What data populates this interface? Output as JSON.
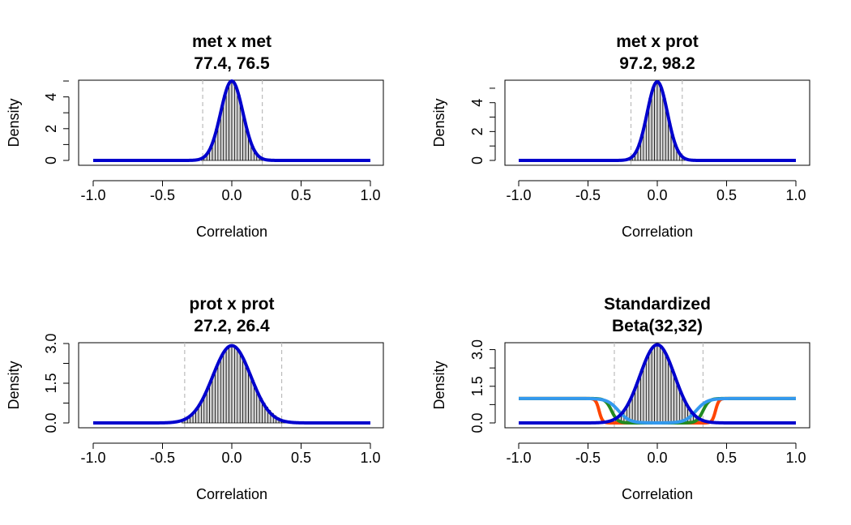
{
  "chart_data": [
    {
      "type": "histogram",
      "title_line1": "met x met",
      "title_line2": "77.4, 76.5",
      "xlabel": "Correlation",
      "ylabel": "Density",
      "xlim": [
        -1.0,
        1.0
      ],
      "ylim": [
        0,
        5.0
      ],
      "x_ticks": [
        "-1.0",
        "-0.5",
        "0.0",
        "0.5",
        "1.0"
      ],
      "y_ticks": [
        0,
        2,
        4
      ],
      "density_peak": 5.0,
      "density_sd": 0.08,
      "threshold_lines": [
        -0.21,
        0.22
      ],
      "hist_skew": 0.25,
      "hist_range": [
        -0.22,
        0.33
      ],
      "overlay_curves": [],
      "curve_color": "#0000CD"
    },
    {
      "type": "histogram",
      "title_line1": "met x prot",
      "title_line2": "97.2, 98.2",
      "xlabel": "Correlation",
      "ylabel": "Density",
      "xlim": [
        -1.0,
        1.0
      ],
      "ylim": [
        0,
        5.5
      ],
      "x_ticks": [
        "-1.0",
        "-0.5",
        "0.0",
        "0.5",
        "1.0"
      ],
      "y_ticks": [
        0,
        2,
        4
      ],
      "density_peak": 5.45,
      "density_sd": 0.073,
      "threshold_lines": [
        -0.19,
        0.18
      ],
      "hist_skew": 0.0,
      "hist_range": [
        -0.2,
        0.2
      ],
      "overlay_curves": [],
      "curve_color": "#0000CD"
    },
    {
      "type": "histogram",
      "title_line1": "prot x prot",
      "title_line2": "27.2, 26.4",
      "xlabel": "Correlation",
      "ylabel": "Density",
      "xlim": [
        -1.0,
        1.0
      ],
      "ylim": [
        0,
        3.0
      ],
      "x_ticks": [
        "-1.0",
        "-0.5",
        "0.0",
        "0.5",
        "1.0"
      ],
      "y_ticks": [
        0.0,
        1.5,
        3.0
      ],
      "density_peak": 2.92,
      "density_sd": 0.137,
      "threshold_lines": [
        -0.34,
        0.36
      ],
      "hist_skew": 0.3,
      "hist_range": [
        -0.36,
        0.48
      ],
      "overlay_curves": [],
      "curve_color": "#0000CD"
    },
    {
      "type": "histogram",
      "title_line1": "Standardized",
      "title_line2": "Beta(32,32)",
      "xlabel": "Correlation",
      "ylabel": "Density",
      "xlim": [
        -1.0,
        1.0
      ],
      "ylim": [
        0,
        3.25
      ],
      "x_ticks": [
        "-1.0",
        "-0.5",
        "0.0",
        "0.5",
        "1.0"
      ],
      "y_ticks": [
        0.0,
        1.5,
        3.0
      ],
      "density_peak": 3.2,
      "density_sd": 0.125,
      "threshold_lines": [
        -0.31,
        0.33
      ],
      "hist_skew": 0.0,
      "hist_range": [
        -0.3,
        0.3
      ],
      "overlay_curves": [
        {
          "color": "#FF4500",
          "level": 1.0,
          "inner_edge": 0.42,
          "steep": 0.012
        },
        {
          "color": "#228B22",
          "level": 1.0,
          "inner_edge": 0.33,
          "steep": 0.022
        },
        {
          "color": "#3399EE",
          "level": 1.0,
          "inner_edge": 0.28,
          "steep": 0.04
        }
      ],
      "curve_color": "#0000CD"
    }
  ]
}
